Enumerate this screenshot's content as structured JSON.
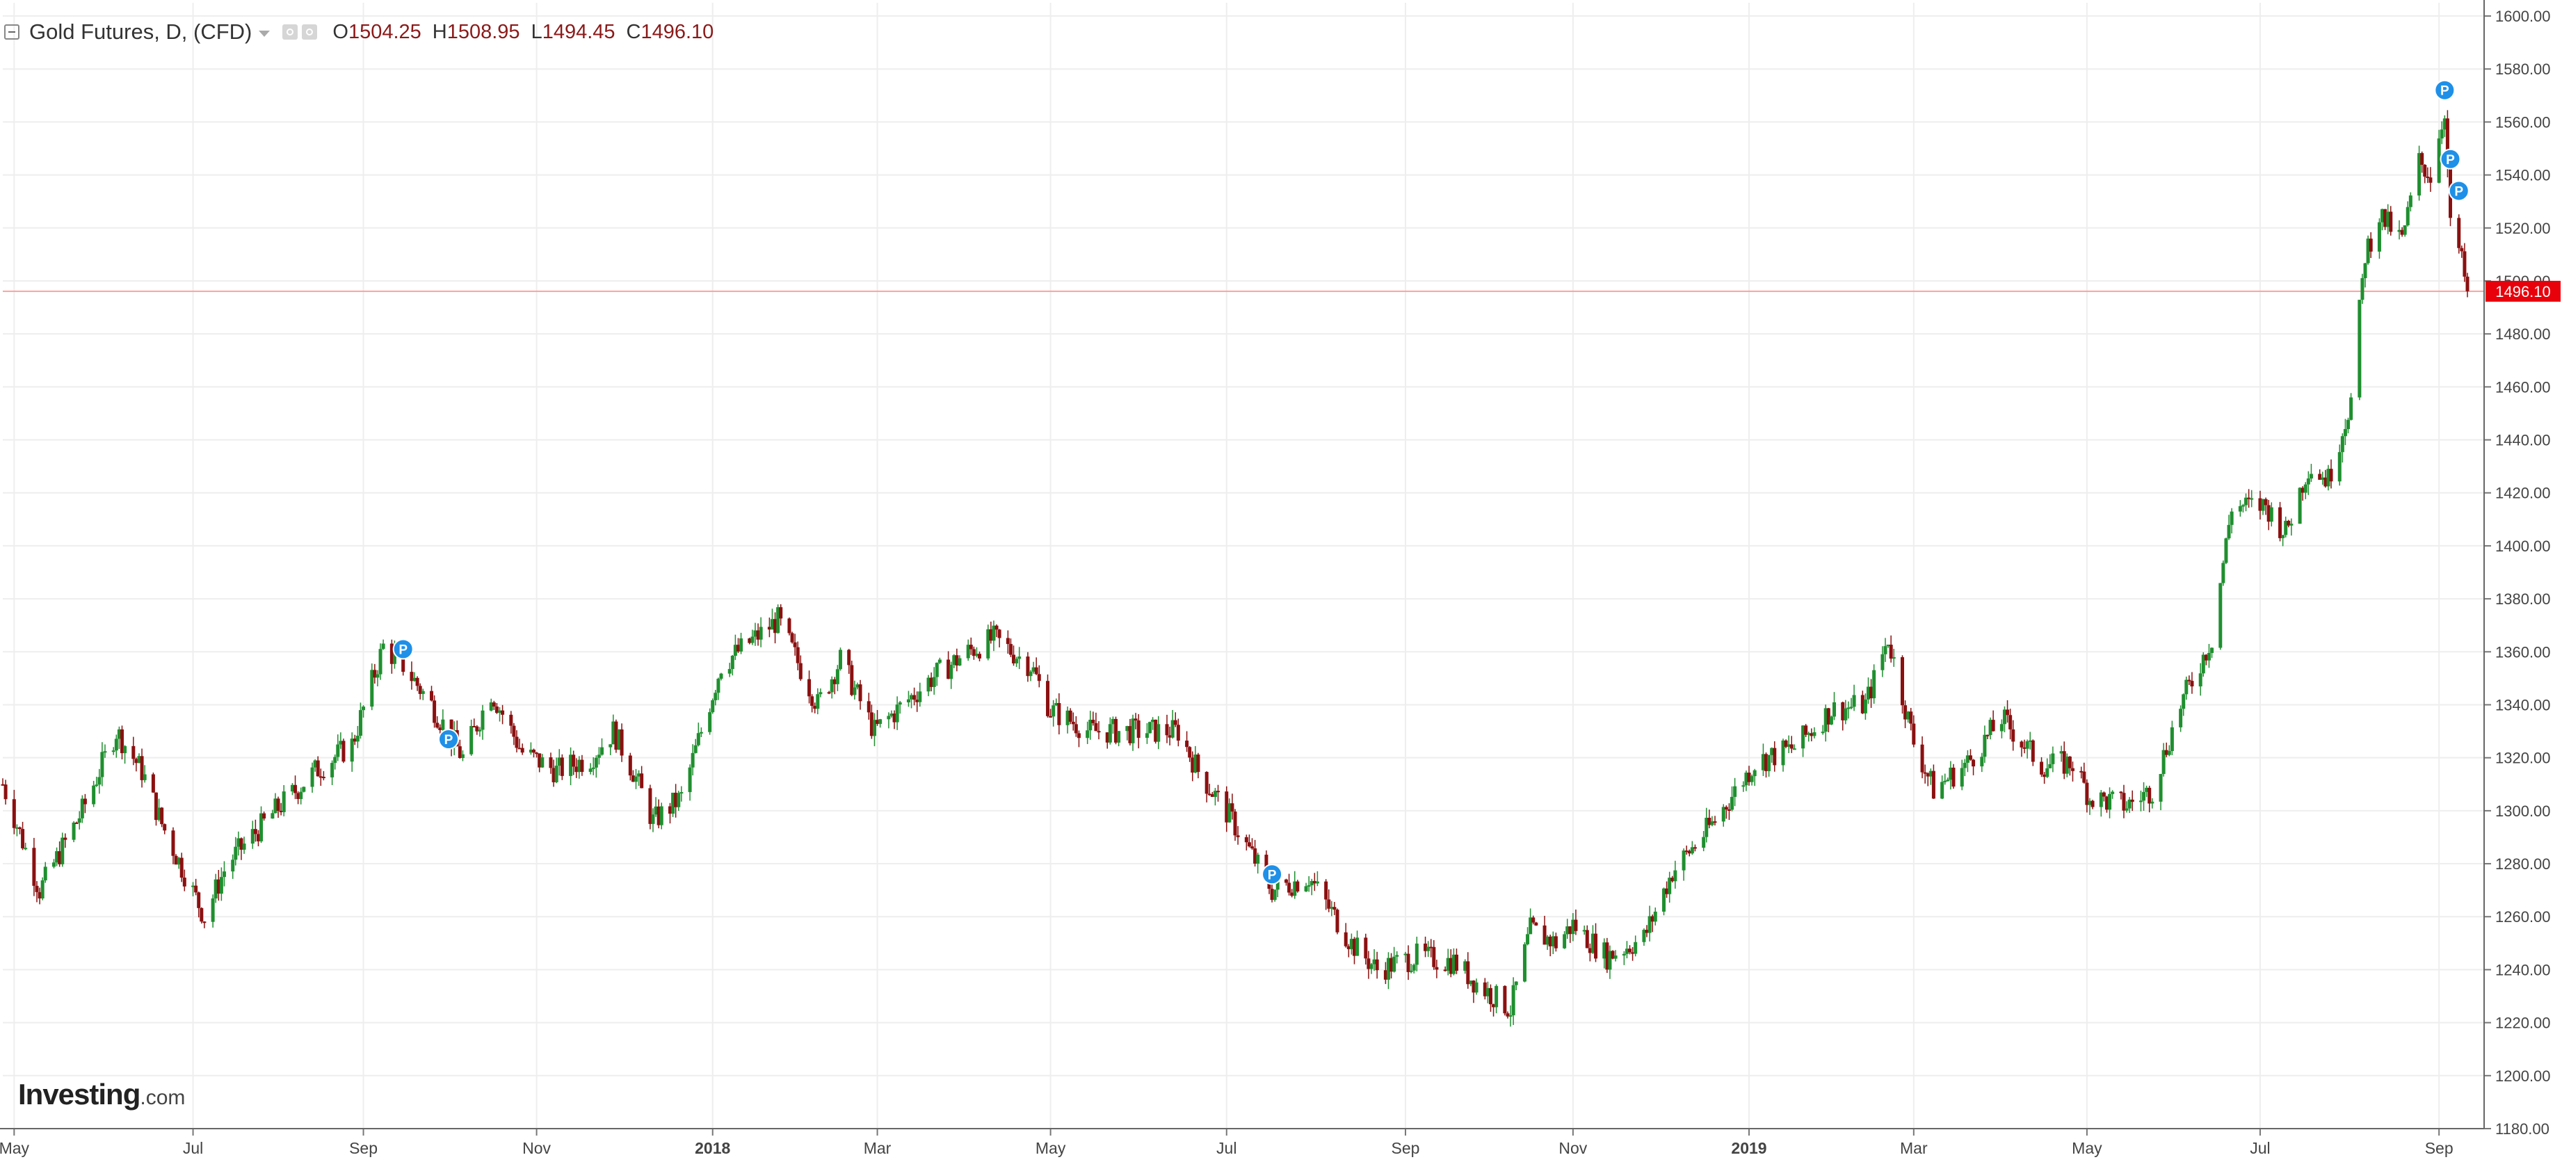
{
  "header": {
    "symbol_title": "Gold Futures, D, (CFD)",
    "open_label": "O",
    "open_value": "1504.25",
    "high_label": "H",
    "high_value": "1508.95",
    "low_label": "L",
    "low_value": "1494.45",
    "close_label": "C",
    "close_value": "1496.10"
  },
  "logo": {
    "main": "Investing",
    "suffix": ".com"
  },
  "colors": {
    "up": "#1f8f2f",
    "down": "#8b1010",
    "price_line": "#ff9f9f",
    "price_tag": "#e8000b",
    "marker": "#1e90e8"
  },
  "chart_data": {
    "type": "candlestick",
    "x_axis": {
      "start": "2017-04-27",
      "end": "2019-09-12",
      "tick_labels": [
        {
          "label": "May",
          "date": "2017-05-01"
        },
        {
          "label": "Jul",
          "date": "2017-07-03"
        },
        {
          "label": "Sep",
          "date": "2017-09-01"
        },
        {
          "label": "Nov",
          "date": "2017-11-01"
        },
        {
          "label": "2018",
          "date": "2018-01-02",
          "bold": true
        },
        {
          "label": "Mar",
          "date": "2018-03-01"
        },
        {
          "label": "May",
          "date": "2018-05-01"
        },
        {
          "label": "Jul",
          "date": "2018-07-02"
        },
        {
          "label": "Sep",
          "date": "2018-09-03"
        },
        {
          "label": "Nov",
          "date": "2018-11-01"
        },
        {
          "label": "2019",
          "date": "2019-01-02",
          "bold": true
        },
        {
          "label": "Mar",
          "date": "2019-03-01"
        },
        {
          "label": "May",
          "date": "2019-05-01"
        },
        {
          "label": "Jul",
          "date": "2019-07-01"
        },
        {
          "label": "Sep",
          "date": "2019-09-02"
        }
      ]
    },
    "y_axis": {
      "min": 1180,
      "max": 1605,
      "ticks": [
        1180,
        1200,
        1220,
        1240,
        1260,
        1280,
        1300,
        1320,
        1340,
        1360,
        1380,
        1400,
        1420,
        1440,
        1460,
        1480,
        1500,
        1520,
        1540,
        1560,
        1580,
        1600
      ],
      "tick_labels": [
        "1180.00",
        "1200.00",
        "1220.00",
        "1240.00",
        "1260.00",
        "1280.00",
        "1300.00",
        "1320.00",
        "1340.00",
        "1360.00",
        "1380.00",
        "1400.00",
        "1420.00",
        "1440.00",
        "1460.00",
        "1480.00",
        "1500.00",
        "1520.00",
        "1540.00",
        "1560.00",
        "1580.00",
        "1600.00"
      ]
    },
    "grid": true,
    "last_price": 1496.1,
    "last_price_label": "1496.10",
    "markers": [
      {
        "label": "P",
        "date": "2017-09-15",
        "price": 1361
      },
      {
        "label": "P",
        "date": "2017-10-01",
        "price": 1327
      },
      {
        "label": "P",
        "date": "2018-07-18",
        "price": 1276
      },
      {
        "label": "P",
        "date": "2019-09-04",
        "price": 1572
      },
      {
        "label": "P",
        "date": "2019-09-06",
        "price": 1546
      },
      {
        "label": "P",
        "date": "2019-09-09",
        "price": 1534
      }
    ],
    "close_path": [
      [
        "2017-04-27",
        1310
      ],
      [
        "2017-05-10",
        1270
      ],
      [
        "2017-05-25",
        1300
      ],
      [
        "2017-06-06",
        1330
      ],
      [
        "2017-06-15",
        1315
      ],
      [
        "2017-06-22",
        1295
      ],
      [
        "2017-07-07",
        1260
      ],
      [
        "2017-07-15",
        1280
      ],
      [
        "2017-08-01",
        1300
      ],
      [
        "2017-08-15",
        1315
      ],
      [
        "2017-08-28",
        1325
      ],
      [
        "2017-09-08",
        1362
      ],
      [
        "2017-09-15",
        1355
      ],
      [
        "2017-09-25",
        1340
      ],
      [
        "2017-10-06",
        1320
      ],
      [
        "2017-10-16",
        1345
      ],
      [
        "2017-10-27",
        1322
      ],
      [
        "2017-11-08",
        1315
      ],
      [
        "2017-11-20",
        1320
      ],
      [
        "2017-11-28",
        1330
      ],
      [
        "2017-12-05",
        1315
      ],
      [
        "2017-12-12",
        1296
      ],
      [
        "2017-12-22",
        1305
      ],
      [
        "2018-01-05",
        1355
      ],
      [
        "2018-01-25",
        1372
      ],
      [
        "2018-02-08",
        1340
      ],
      [
        "2018-02-16",
        1357
      ],
      [
        "2018-02-28",
        1330
      ],
      [
        "2018-03-10",
        1340
      ],
      [
        "2018-03-20",
        1350
      ],
      [
        "2018-04-02",
        1360
      ],
      [
        "2018-04-11",
        1365
      ],
      [
        "2018-04-24",
        1355
      ],
      [
        "2018-05-01",
        1338
      ],
      [
        "2018-05-15",
        1330
      ],
      [
        "2018-05-25",
        1330
      ],
      [
        "2018-06-06",
        1330
      ],
      [
        "2018-06-15",
        1330
      ],
      [
        "2018-06-22",
        1315
      ],
      [
        "2018-07-03",
        1298
      ],
      [
        "2018-07-18",
        1270
      ],
      [
        "2018-07-31",
        1275
      ],
      [
        "2018-08-15",
        1250
      ],
      [
        "2018-08-24",
        1240
      ],
      [
        "2018-09-07",
        1245
      ],
      [
        "2018-09-20",
        1243
      ],
      [
        "2018-09-28",
        1235
      ],
      [
        "2018-10-10",
        1225
      ],
      [
        "2018-10-17",
        1255
      ],
      [
        "2018-10-26",
        1250
      ],
      [
        "2018-11-01",
        1257
      ],
      [
        "2018-11-13",
        1245
      ],
      [
        "2018-11-26",
        1252
      ],
      [
        "2018-12-06",
        1277
      ],
      [
        "2018-12-20",
        1295
      ],
      [
        "2019-01-04",
        1318
      ],
      [
        "2019-01-18",
        1324
      ],
      [
        "2019-01-31",
        1338
      ],
      [
        "2019-02-12",
        1340
      ],
      [
        "2019-02-20",
        1365
      ],
      [
        "2019-03-01",
        1326
      ],
      [
        "2019-03-08",
        1308
      ],
      [
        "2019-03-20",
        1318
      ],
      [
        "2019-04-01",
        1335
      ],
      [
        "2019-04-15",
        1317
      ],
      [
        "2019-04-26",
        1318
      ],
      [
        "2019-05-02",
        1305
      ],
      [
        "2019-05-15",
        1302
      ],
      [
        "2019-05-24",
        1308
      ],
      [
        "2019-06-03",
        1340
      ],
      [
        "2019-06-14",
        1365
      ],
      [
        "2019-06-21",
        1415
      ],
      [
        "2019-07-03",
        1415
      ],
      [
        "2019-07-10",
        1405
      ],
      [
        "2019-07-18",
        1430
      ],
      [
        "2019-07-25",
        1425
      ],
      [
        "2019-08-02",
        1455
      ],
      [
        "2019-08-07",
        1510
      ],
      [
        "2019-08-12",
        1525
      ],
      [
        "2019-08-20",
        1515
      ],
      [
        "2019-08-26",
        1545
      ],
      [
        "2019-08-30",
        1540
      ],
      [
        "2019-09-04",
        1565
      ],
      [
        "2019-09-06",
        1520
      ],
      [
        "2019-09-09",
        1512
      ],
      [
        "2019-09-12",
        1496.1
      ]
    ]
  }
}
